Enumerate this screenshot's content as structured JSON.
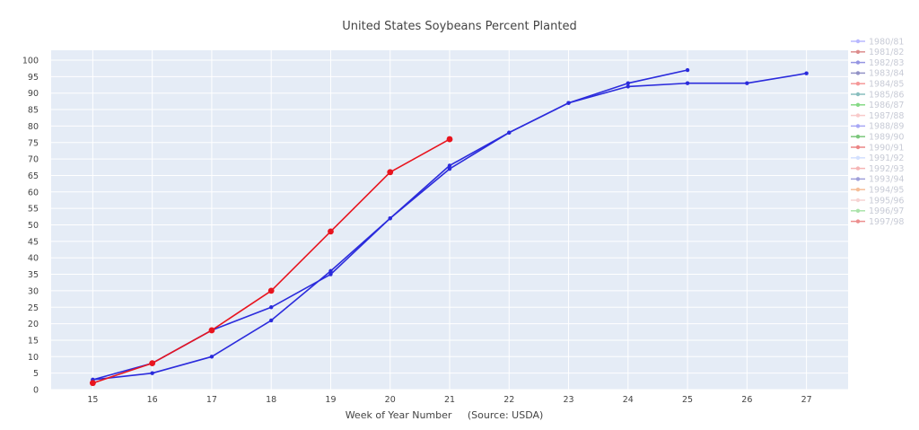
{
  "chart_data": {
    "type": "line",
    "title": "United States Soybeans Percent Planted",
    "xlabel": "Week of Year Number     (Source: USDA)",
    "ylabel": "",
    "xlim": [
      14.3,
      27.7
    ],
    "ylim": [
      0,
      103
    ],
    "x_ticks": [
      15,
      16,
      17,
      18,
      19,
      20,
      21,
      22,
      23,
      24,
      25,
      26,
      27
    ],
    "y_ticks": [
      0,
      5,
      10,
      15,
      20,
      25,
      30,
      35,
      40,
      45,
      50,
      55,
      60,
      65,
      70,
      75,
      80,
      85,
      90,
      95,
      100
    ],
    "grid": true,
    "legend_position": "right",
    "colors": {
      "plot_bg": "#e5ecf6",
      "grid": "#ffffff",
      "blue": "#2b2bdc",
      "red": "#e8141e"
    },
    "legend": [
      {
        "name": "1980/81",
        "color": "#7f7fff",
        "visible": false
      },
      {
        "name": "1981/82",
        "color": "#c03030",
        "visible": false
      },
      {
        "name": "1982/83",
        "color": "#4040cc",
        "visible": false
      },
      {
        "name": "1983/84",
        "color": "#3a3a99",
        "visible": false
      },
      {
        "name": "1984/85",
        "color": "#ee4444",
        "visible": false
      },
      {
        "name": "1985/86",
        "color": "#2a8a8a",
        "visible": false
      },
      {
        "name": "1986/87",
        "color": "#22bb22",
        "visible": false
      },
      {
        "name": "1987/88",
        "color": "#f4a0a0",
        "visible": false
      },
      {
        "name": "1988/89",
        "color": "#6060ee",
        "visible": false
      },
      {
        "name": "1989/90",
        "color": "#119911",
        "visible": false
      },
      {
        "name": "1990/91",
        "color": "#dd2222",
        "visible": false
      },
      {
        "name": "1991/92",
        "color": "#b0c8ff",
        "visible": false
      },
      {
        "name": "1992/93",
        "color": "#ee7777",
        "visible": false
      },
      {
        "name": "1993/94",
        "color": "#5050bb",
        "visible": false
      },
      {
        "name": "1994/95",
        "color": "#ee8844",
        "visible": false
      },
      {
        "name": "1995/96",
        "color": "#f0b0b0",
        "visible": false
      },
      {
        "name": "1996/97",
        "color": "#66cc66",
        "visible": false
      },
      {
        "name": "1997/98",
        "color": "#dd3333",
        "visible": false
      }
    ],
    "series": [
      {
        "x": [
          15,
          16,
          17,
          18,
          19,
          20,
          21,
          22,
          23,
          24,
          25,
          26,
          27
        ],
        "values": [
          3,
          5,
          10,
          21,
          36,
          52,
          67,
          78,
          87,
          92,
          93,
          93,
          96
        ],
        "color": "#2b2bdc",
        "marker": "small"
      },
      {
        "x": [
          15,
          16,
          17,
          18,
          19,
          20,
          21,
          22,
          23,
          24,
          25
        ],
        "values": [
          3,
          8,
          18,
          25,
          35,
          52,
          68,
          78,
          87,
          93,
          97
        ],
        "color": "#2b2bdc",
        "marker": "small"
      },
      {
        "x": [
          15,
          16,
          17,
          18,
          19,
          20,
          21
        ],
        "values": [
          2,
          8,
          18,
          30,
          48,
          66,
          76
        ],
        "color": "#e8141e",
        "marker": "large"
      }
    ]
  }
}
